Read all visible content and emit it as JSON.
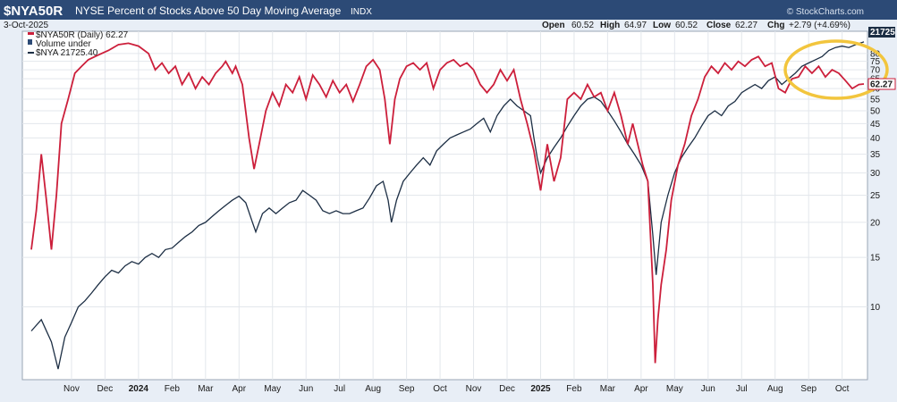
{
  "header": {
    "symbol": "$NYA50R",
    "description": "NYSE Percent of Stocks Above 50 Day Moving Average",
    "exchange": "INDX",
    "date": "3-Oct-2025",
    "watermark": "© StockCharts.com",
    "quote": {
      "open_label": "Open",
      "open": "60.52",
      "high_label": "High",
      "high": "64.97",
      "low_label": "Low",
      "low": "60.52",
      "close_label": "Close",
      "close": "62.27",
      "chg_label": "Chg",
      "chg": "+2.79 (+4.69%)"
    }
  },
  "legend": {
    "series1": "$NYA50R (Daily) 62.27",
    "volume": "Volume under",
    "series2": "$NYA 21725.40"
  },
  "price_tags": {
    "nya": "21725",
    "nya50r": "62.27"
  },
  "colors": {
    "nya50r": "#cc1f3b",
    "nya": "#1c2e44",
    "highlight": "#f2c53d",
    "header_bg": "#2c4a76",
    "chart_bg": "#ffffff"
  },
  "chart_data": {
    "type": "line",
    "title": "NYSE Percent of Stocks Above 50 Day Moving Average",
    "y_scale": "log",
    "ylim": [
      5.5,
      96
    ],
    "y_ticks": [
      10,
      15,
      20,
      25,
      30,
      35,
      40,
      45,
      50,
      55,
      60,
      65,
      70,
      75,
      80
    ],
    "x_range": [
      0,
      24.85
    ],
    "x_ticks": [
      {
        "label": "Nov",
        "x": 1.2,
        "bold": false
      },
      {
        "label": "Dec",
        "x": 2.2,
        "bold": false
      },
      {
        "label": "2024",
        "x": 3.2,
        "bold": true
      },
      {
        "label": "Feb",
        "x": 4.2,
        "bold": false
      },
      {
        "label": "Mar",
        "x": 5.2,
        "bold": false
      },
      {
        "label": "Apr",
        "x": 6.2,
        "bold": false
      },
      {
        "label": "May",
        "x": 7.2,
        "bold": false
      },
      {
        "label": "Jun",
        "x": 8.2,
        "bold": false
      },
      {
        "label": "Jul",
        "x": 9.2,
        "bold": false
      },
      {
        "label": "Aug",
        "x": 10.2,
        "bold": false
      },
      {
        "label": "Sep",
        "x": 11.2,
        "bold": false
      },
      {
        "label": "Oct",
        "x": 12.2,
        "bold": false
      },
      {
        "label": "Nov",
        "x": 13.2,
        "bold": false
      },
      {
        "label": "Dec",
        "x": 14.2,
        "bold": false
      },
      {
        "label": "2025",
        "x": 15.2,
        "bold": true
      },
      {
        "label": "Feb",
        "x": 16.2,
        "bold": false
      },
      {
        "label": "Mar",
        "x": 17.2,
        "bold": false
      },
      {
        "label": "Apr",
        "x": 18.2,
        "bold": false
      },
      {
        "label": "May",
        "x": 19.2,
        "bold": false
      },
      {
        "label": "Jun",
        "x": 20.2,
        "bold": false
      },
      {
        "label": "Jul",
        "x": 21.2,
        "bold": false
      },
      {
        "label": "Aug",
        "x": 22.2,
        "bold": false
      },
      {
        "label": "Sep",
        "x": 23.2,
        "bold": false
      },
      {
        "label": "Oct",
        "x": 24.2,
        "bold": false
      }
    ],
    "series": [
      {
        "name": "$NYA50R (Daily)",
        "last": 62.27,
        "points": [
          [
            0,
            16
          ],
          [
            0.15,
            22
          ],
          [
            0.3,
            35
          ],
          [
            0.45,
            24
          ],
          [
            0.6,
            16
          ],
          [
            0.75,
            25
          ],
          [
            0.9,
            45
          ],
          [
            1.1,
            55
          ],
          [
            1.3,
            68
          ],
          [
            1.5,
            72
          ],
          [
            1.7,
            76
          ],
          [
            2.0,
            79
          ],
          [
            2.3,
            82
          ],
          [
            2.6,
            86
          ],
          [
            2.9,
            87
          ],
          [
            3.2,
            85
          ],
          [
            3.5,
            80
          ],
          [
            3.7,
            70
          ],
          [
            3.9,
            74
          ],
          [
            4.1,
            68
          ],
          [
            4.3,
            72
          ],
          [
            4.5,
            62
          ],
          [
            4.7,
            68
          ],
          [
            4.9,
            60
          ],
          [
            5.1,
            66
          ],
          [
            5.3,
            62
          ],
          [
            5.5,
            68
          ],
          [
            5.7,
            72
          ],
          [
            5.8,
            75
          ],
          [
            6.0,
            68
          ],
          [
            6.1,
            72
          ],
          [
            6.3,
            62
          ],
          [
            6.5,
            40
          ],
          [
            6.65,
            31
          ],
          [
            6.8,
            38
          ],
          [
            7.0,
            50
          ],
          [
            7.2,
            58
          ],
          [
            7.4,
            52
          ],
          [
            7.6,
            62
          ],
          [
            7.8,
            58
          ],
          [
            8.0,
            66
          ],
          [
            8.2,
            55
          ],
          [
            8.4,
            67
          ],
          [
            8.6,
            62
          ],
          [
            8.8,
            56
          ],
          [
            9.0,
            64
          ],
          [
            9.2,
            58
          ],
          [
            9.4,
            62
          ],
          [
            9.6,
            54
          ],
          [
            9.8,
            62
          ],
          [
            10.0,
            72
          ],
          [
            10.2,
            76
          ],
          [
            10.4,
            70
          ],
          [
            10.55,
            55
          ],
          [
            10.7,
            38
          ],
          [
            10.85,
            55
          ],
          [
            11.0,
            65
          ],
          [
            11.2,
            72
          ],
          [
            11.4,
            74
          ],
          [
            11.6,
            70
          ],
          [
            11.8,
            74
          ],
          [
            12.0,
            60
          ],
          [
            12.2,
            70
          ],
          [
            12.4,
            74
          ],
          [
            12.6,
            76
          ],
          [
            12.8,
            72
          ],
          [
            13.0,
            74
          ],
          [
            13.2,
            70
          ],
          [
            13.4,
            62
          ],
          [
            13.6,
            58
          ],
          [
            13.8,
            62
          ],
          [
            14.0,
            70
          ],
          [
            14.2,
            64
          ],
          [
            14.4,
            70
          ],
          [
            14.6,
            55
          ],
          [
            14.8,
            45
          ],
          [
            15.0,
            36
          ],
          [
            15.2,
            26
          ],
          [
            15.4,
            38
          ],
          [
            15.6,
            28
          ],
          [
            15.8,
            34
          ],
          [
            16.0,
            55
          ],
          [
            16.2,
            58
          ],
          [
            16.4,
            55
          ],
          [
            16.6,
            62
          ],
          [
            16.8,
            56
          ],
          [
            17.0,
            58
          ],
          [
            17.2,
            50
          ],
          [
            17.4,
            58
          ],
          [
            17.6,
            48
          ],
          [
            17.8,
            38
          ],
          [
            17.95,
            45
          ],
          [
            18.1,
            38
          ],
          [
            18.25,
            32
          ],
          [
            18.4,
            28
          ],
          [
            18.55,
            12
          ],
          [
            18.62,
            6.3
          ],
          [
            18.7,
            9
          ],
          [
            18.8,
            12
          ],
          [
            18.95,
            16
          ],
          [
            19.1,
            24
          ],
          [
            19.3,
            32
          ],
          [
            19.5,
            38
          ],
          [
            19.7,
            48
          ],
          [
            19.9,
            55
          ],
          [
            20.1,
            66
          ],
          [
            20.3,
            72
          ],
          [
            20.5,
            68
          ],
          [
            20.7,
            74
          ],
          [
            20.9,
            70
          ],
          [
            21.1,
            75
          ],
          [
            21.3,
            72
          ],
          [
            21.5,
            76
          ],
          [
            21.7,
            78
          ],
          [
            21.9,
            72
          ],
          [
            22.1,
            74
          ],
          [
            22.3,
            60
          ],
          [
            22.5,
            58
          ],
          [
            22.7,
            65
          ],
          [
            22.9,
            66
          ],
          [
            23.1,
            72
          ],
          [
            23.3,
            68
          ],
          [
            23.5,
            72
          ],
          [
            23.7,
            66
          ],
          [
            23.9,
            70
          ],
          [
            24.1,
            68
          ],
          [
            24.3,
            64
          ],
          [
            24.5,
            60
          ],
          [
            24.7,
            62
          ],
          [
            24.85,
            62.27
          ]
        ]
      },
      {
        "name": "$NYA",
        "last": 21725.4,
        "points": [
          [
            0,
            8.2
          ],
          [
            0.3,
            9
          ],
          [
            0.6,
            7.5
          ],
          [
            0.8,
            6.0
          ],
          [
            1.0,
            7.8
          ],
          [
            1.2,
            8.8
          ],
          [
            1.4,
            10
          ],
          [
            1.6,
            10.5
          ],
          [
            1.8,
            11.2
          ],
          [
            2.0,
            12
          ],
          [
            2.2,
            12.8
          ],
          [
            2.4,
            13.5
          ],
          [
            2.6,
            13.2
          ],
          [
            2.8,
            14
          ],
          [
            3.0,
            14.5
          ],
          [
            3.2,
            14.2
          ],
          [
            3.4,
            15
          ],
          [
            3.6,
            15.5
          ],
          [
            3.8,
            15
          ],
          [
            4.0,
            16
          ],
          [
            4.2,
            16.2
          ],
          [
            4.4,
            17
          ],
          [
            4.6,
            17.8
          ],
          [
            4.8,
            18.5
          ],
          [
            5.0,
            19.5
          ],
          [
            5.2,
            20
          ],
          [
            5.4,
            21
          ],
          [
            5.6,
            22
          ],
          [
            5.8,
            23
          ],
          [
            6.0,
            24
          ],
          [
            6.2,
            24.8
          ],
          [
            6.4,
            23.5
          ],
          [
            6.6,
            20
          ],
          [
            6.7,
            18.5
          ],
          [
            6.9,
            21.5
          ],
          [
            7.1,
            22.5
          ],
          [
            7.3,
            21.5
          ],
          [
            7.5,
            22.5
          ],
          [
            7.7,
            23.5
          ],
          [
            7.9,
            24
          ],
          [
            8.1,
            26
          ],
          [
            8.3,
            25
          ],
          [
            8.5,
            24
          ],
          [
            8.7,
            22
          ],
          [
            8.9,
            21.5
          ],
          [
            9.1,
            22
          ],
          [
            9.3,
            21.5
          ],
          [
            9.5,
            21.5
          ],
          [
            9.7,
            22
          ],
          [
            9.9,
            22.5
          ],
          [
            10.1,
            24.5
          ],
          [
            10.3,
            27
          ],
          [
            10.5,
            28
          ],
          [
            10.65,
            24
          ],
          [
            10.75,
            20
          ],
          [
            10.9,
            24
          ],
          [
            11.1,
            28
          ],
          [
            11.3,
            30
          ],
          [
            11.5,
            32
          ],
          [
            11.7,
            34
          ],
          [
            11.9,
            32
          ],
          [
            12.1,
            36
          ],
          [
            12.3,
            38
          ],
          [
            12.5,
            40
          ],
          [
            12.7,
            41
          ],
          [
            12.9,
            42
          ],
          [
            13.1,
            43
          ],
          [
            13.3,
            45
          ],
          [
            13.5,
            47
          ],
          [
            13.7,
            42
          ],
          [
            13.9,
            48
          ],
          [
            14.1,
            52
          ],
          [
            14.3,
            55
          ],
          [
            14.5,
            52
          ],
          [
            14.7,
            50
          ],
          [
            14.9,
            48
          ],
          [
            15.0,
            40
          ],
          [
            15.1,
            34
          ],
          [
            15.2,
            30
          ],
          [
            15.4,
            34
          ],
          [
            15.6,
            37
          ],
          [
            15.8,
            40
          ],
          [
            16.0,
            44
          ],
          [
            16.2,
            48
          ],
          [
            16.4,
            52
          ],
          [
            16.6,
            55
          ],
          [
            16.8,
            56
          ],
          [
            17.0,
            54
          ],
          [
            17.2,
            50
          ],
          [
            17.4,
            46
          ],
          [
            17.6,
            42
          ],
          [
            17.8,
            38
          ],
          [
            18.0,
            35
          ],
          [
            18.2,
            32
          ],
          [
            18.4,
            28
          ],
          [
            18.55,
            18
          ],
          [
            18.65,
            13
          ],
          [
            18.8,
            20
          ],
          [
            19.0,
            25
          ],
          [
            19.2,
            30
          ],
          [
            19.4,
            34
          ],
          [
            19.6,
            37
          ],
          [
            19.8,
            40
          ],
          [
            20.0,
            44
          ],
          [
            20.2,
            48
          ],
          [
            20.4,
            50
          ],
          [
            20.6,
            48
          ],
          [
            20.8,
            52
          ],
          [
            21.0,
            54
          ],
          [
            21.2,
            58
          ],
          [
            21.4,
            60
          ],
          [
            21.6,
            62
          ],
          [
            21.8,
            60
          ],
          [
            22.0,
            64
          ],
          [
            22.2,
            66
          ],
          [
            22.4,
            62
          ],
          [
            22.6,
            65
          ],
          [
            22.8,
            68
          ],
          [
            23.0,
            72
          ],
          [
            23.2,
            74
          ],
          [
            23.4,
            76
          ],
          [
            23.6,
            78
          ],
          [
            23.8,
            82
          ],
          [
            24.0,
            84
          ],
          [
            24.2,
            85
          ],
          [
            24.4,
            84
          ],
          [
            24.6,
            86
          ],
          [
            24.85,
            88
          ]
        ]
      }
    ],
    "annotations": [
      {
        "type": "ellipse",
        "color": "yellow",
        "region": "Aug–Oct 2025 divergence"
      }
    ]
  }
}
